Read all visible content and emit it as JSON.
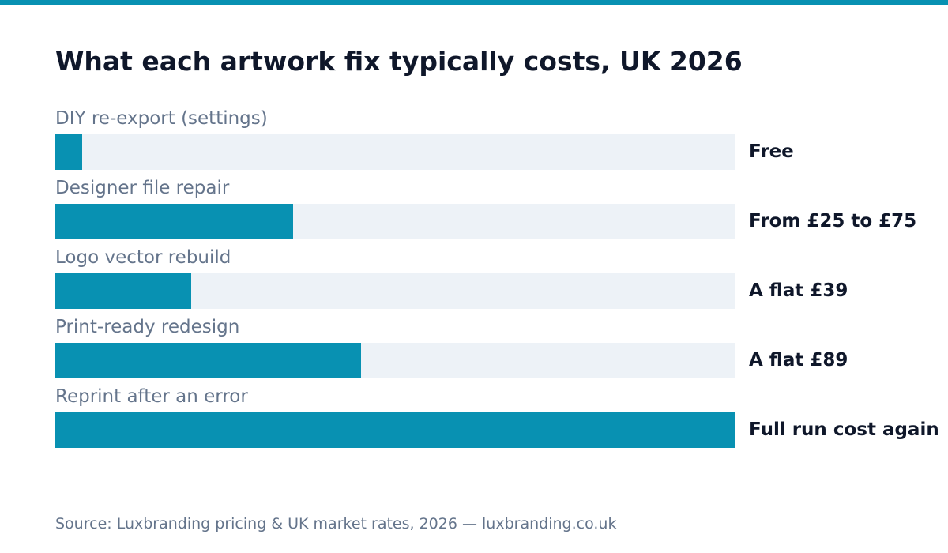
{
  "colors": {
    "accent": "#0891b2",
    "track": "#edf2f7",
    "title": "#0f172a",
    "muted": "#64748b"
  },
  "chart_data": {
    "type": "bar",
    "orientation": "horizontal",
    "title": "What each artwork fix typically costs, UK 2026",
    "categories": [
      "DIY re-export (settings)",
      "Designer file repair",
      "Logo vector rebuild",
      "Print-ready redesign",
      "Reprint after an error"
    ],
    "value_labels": [
      "Free",
      "From £25 to £75",
      "A flat £39",
      "A flat £89",
      "Full run cost again"
    ],
    "values": [
      0.04,
      0.35,
      0.2,
      0.45,
      1.0
    ],
    "grid": false,
    "legend": "none"
  },
  "source": "Source: Luxbranding pricing & UK market rates, 2026 — luxbranding.co.uk"
}
